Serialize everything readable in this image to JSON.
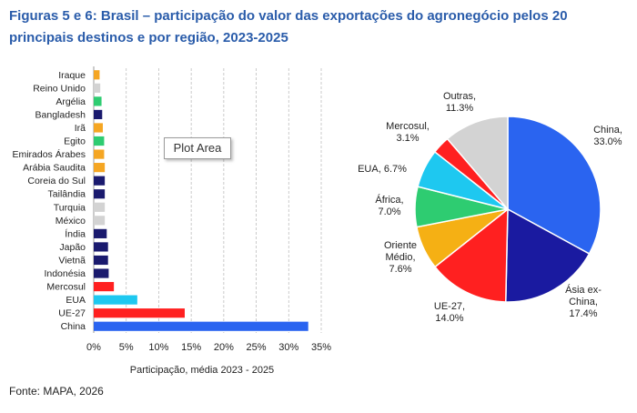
{
  "title": "Figuras 5 e 6: Brasil – participação do valor das exportações do agronegócio pelos 20 principais destinos e por região, 2023-2025",
  "source": "Fonte: MAPA, 2026",
  "tooltip": "Plot Area",
  "chart_data": [
    {
      "type": "bar",
      "orientation": "horizontal",
      "categories": [
        "Iraque",
        "Reino Unido",
        "Argélia",
        "Bangladesh",
        "Irã",
        "Egito",
        "Emirados Árabes",
        "Arábia Saudita",
        "Coreia do Sul",
        "Tailândia",
        "Turquia",
        "México",
        "Índia",
        "Japão",
        "Vietnã",
        "Indonésia",
        "Mercosul",
        "EUA",
        "UE-27",
        "China"
      ],
      "values": [
        0.9,
        1.0,
        1.2,
        1.3,
        1.4,
        1.6,
        1.6,
        1.7,
        1.7,
        1.7,
        1.7,
        1.7,
        2.0,
        2.2,
        2.2,
        2.3,
        3.1,
        6.7,
        14.0,
        33.0
      ],
      "colors": [
        "#f5a623",
        "#d3d3d3",
        "#2ecc71",
        "#1a1a6e",
        "#f5a623",
        "#2ecc71",
        "#f5a623",
        "#f5a623",
        "#1a1a6e",
        "#1a1a6e",
        "#d3d3d3",
        "#d3d3d3",
        "#1a1a6e",
        "#1a1a6e",
        "#1a1a6e",
        "#1a1a6e",
        "#ff2020",
        "#1ec8f0",
        "#ff2020",
        "#2a64f0"
      ],
      "xlabel": "Participação, média 2023 - 2025",
      "xlim": [
        0,
        35
      ],
      "xticks": [
        "0%",
        "5%",
        "10%",
        "15%",
        "20%",
        "25%",
        "30%",
        "35%"
      ],
      "grid": true
    },
    {
      "type": "pie",
      "labels": [
        "China",
        "Ásia ex-China",
        "UE-27",
        "Oriente Médio",
        "África",
        "EUA",
        "Mercosul",
        "Outras"
      ],
      "values": [
        33.0,
        17.4,
        14.0,
        7.6,
        7.0,
        6.7,
        3.1,
        11.3
      ],
      "value_labels": [
        "33.0%",
        "17.4%",
        "14.0%",
        "7.6%",
        "7.0%",
        "6.7%",
        "3.1%",
        "11.3%"
      ],
      "colors": [
        "#2a64f0",
        "#1a1aa0",
        "#ff2020",
        "#f5b014",
        "#2ecc71",
        "#1ec8f0",
        "#ff2020",
        "#d3d3d3"
      ]
    }
  ]
}
